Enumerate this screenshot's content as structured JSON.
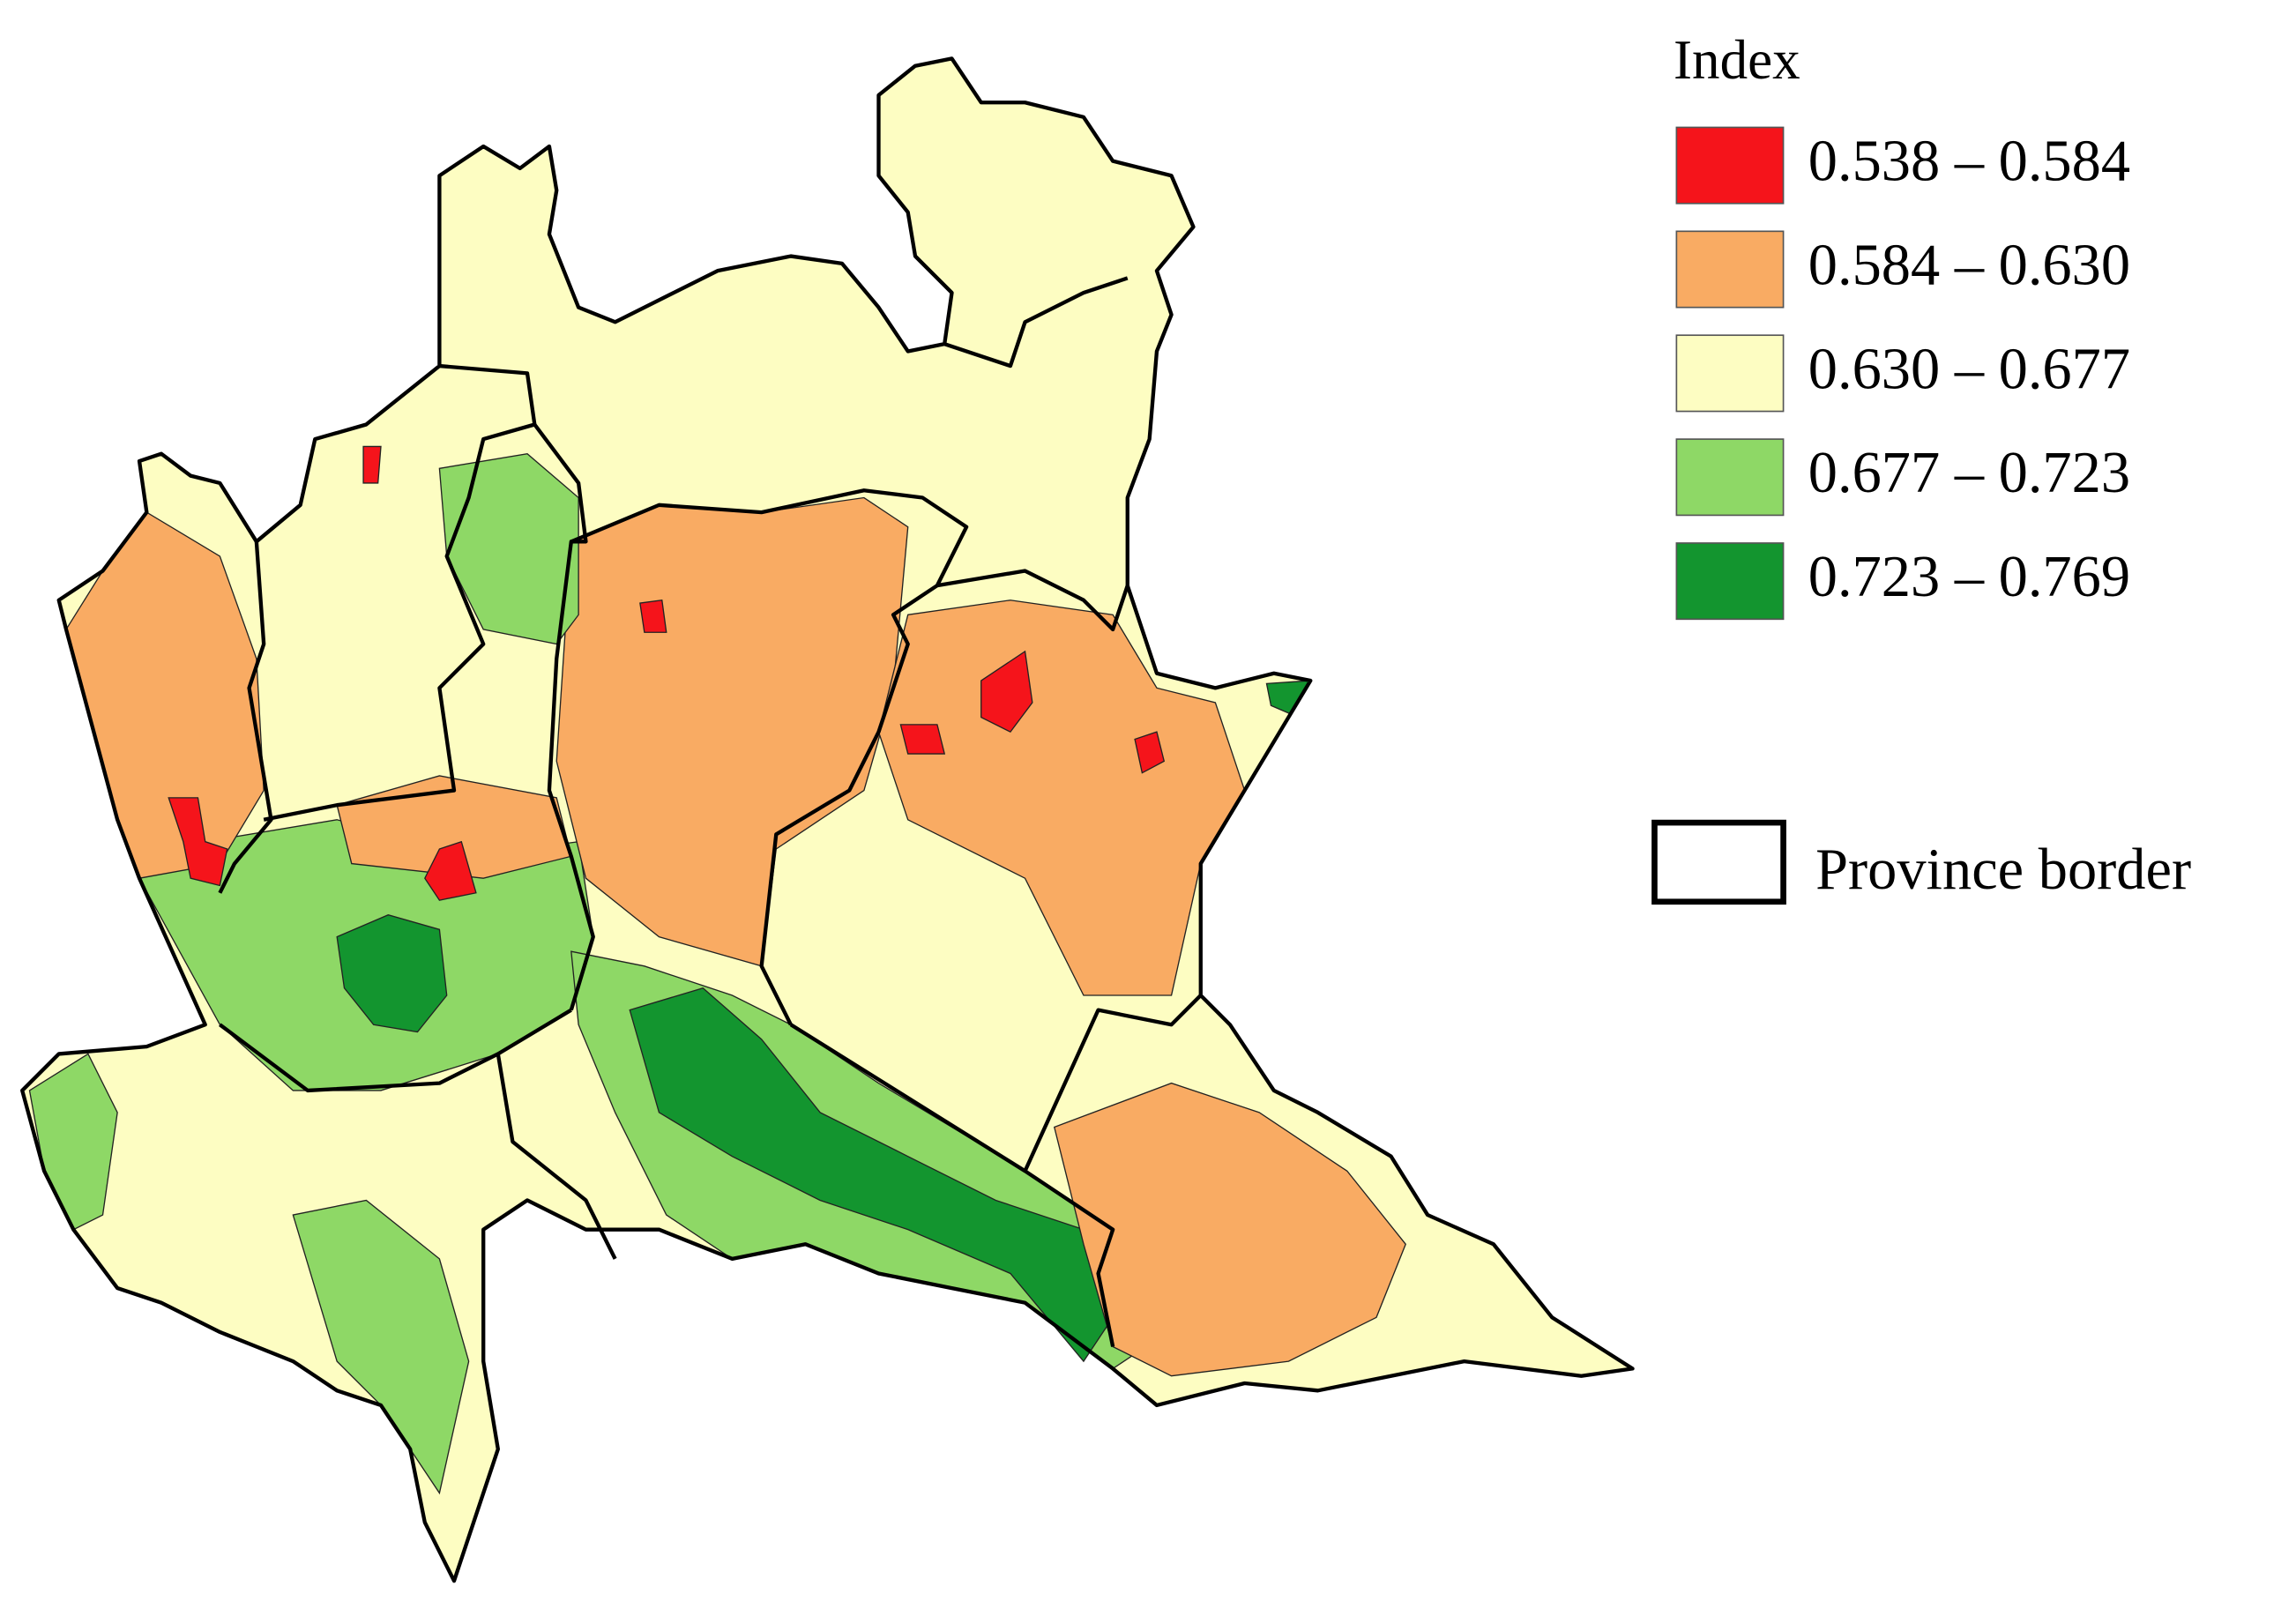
{
  "legend": {
    "title": "Index",
    "classes": [
      {
        "label": "0.538 – 0.584",
        "color": "#f5141b"
      },
      {
        "label": "0.584 – 0.630",
        "color": "#f9ab63"
      },
      {
        "label": "0.630 – 0.677",
        "color": "#fdfdc2"
      },
      {
        "label": "0.677 – 0.723",
        "color": "#8ed866"
      },
      {
        "label": "0.723 – 0.769",
        "color": "#13952f"
      }
    ],
    "border_label": "Province border"
  }
}
